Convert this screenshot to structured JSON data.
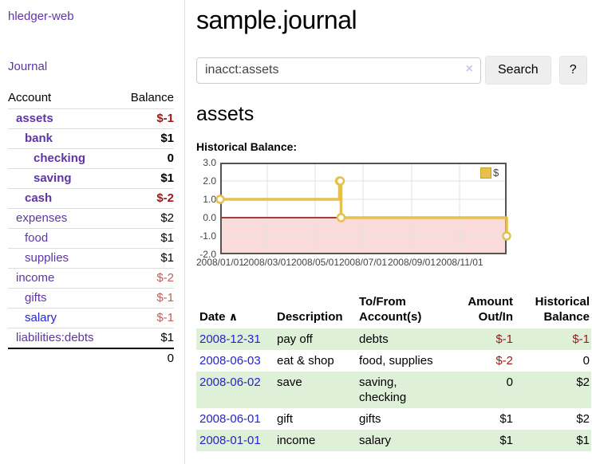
{
  "colors": {
    "purple": "#5f35a5",
    "blue": "#2424cc",
    "negative": "#9a1a1a",
    "negative_muted": "#bd605f",
    "row_green": "#dff0d8",
    "gold": "#e6c04c"
  },
  "sidebar": {
    "app_title": "hledger-web",
    "journal_link": "Journal",
    "accounts_table": {
      "account_header": "Account",
      "balance_header": "Balance",
      "rows": [
        {
          "name": "assets",
          "indent": 1,
          "bold": true,
          "link_color": "purple",
          "balance": "$-1",
          "balance_class": "neg"
        },
        {
          "name": "bank",
          "indent": 2,
          "bold": true,
          "link_color": "purple",
          "balance": "$1",
          "balance_class": ""
        },
        {
          "name": "checking",
          "indent": 3,
          "bold": true,
          "link_color": "purple",
          "balance": "0",
          "balance_class": ""
        },
        {
          "name": "saving",
          "indent": 3,
          "bold": true,
          "link_color": "purple",
          "balance": "$1",
          "balance_class": ""
        },
        {
          "name": "cash",
          "indent": 2,
          "bold": true,
          "link_color": "purple",
          "balance": "$-2",
          "balance_class": "neg"
        },
        {
          "name": "expenses",
          "indent": 1,
          "bold": false,
          "link_color": "purple",
          "balance": "$2",
          "balance_class": ""
        },
        {
          "name": "food",
          "indent": 2,
          "bold": false,
          "link_color": "purple",
          "balance": "$1",
          "balance_class": ""
        },
        {
          "name": "supplies",
          "indent": 2,
          "bold": false,
          "link_color": "purple",
          "balance": "$1",
          "balance_class": ""
        },
        {
          "name": "income",
          "indent": 1,
          "bold": false,
          "link_color": "purple",
          "balance": "$-2",
          "balance_class": "negmuted"
        },
        {
          "name": "gifts",
          "indent": 2,
          "bold": false,
          "link_color": "purple",
          "balance": "$-1",
          "balance_class": "negmuted"
        },
        {
          "name": "salary",
          "indent": 2,
          "bold": false,
          "link_color": "blue",
          "balance": "$-1",
          "balance_class": "negmuted"
        },
        {
          "name": "liabilities:debts",
          "indent": 1,
          "bold": false,
          "link_color": "purple",
          "balance": "$1",
          "balance_class": ""
        }
      ],
      "total": "0"
    }
  },
  "main": {
    "title": "sample.journal",
    "search": {
      "value": "inacct:assets",
      "clear_icon": "×",
      "search_button": "Search",
      "help_button": "?"
    },
    "account_heading": "assets",
    "register_table": {
      "headers": {
        "date": "Date",
        "sort_indicator": "∧",
        "description": "Description",
        "accounts_line1": "To/From",
        "accounts_line2": "Account(s)",
        "amount_line1": "Amount",
        "amount_line2": "Out/In",
        "balance_line1": "Historical",
        "balance_line2": "Balance"
      },
      "rows": [
        {
          "date": "2008-12-31",
          "description": "pay off",
          "accounts": "debts",
          "amount": "$-1",
          "amount_class": "neg",
          "balance": "$-1",
          "balance_class": "neg",
          "shaded": true
        },
        {
          "date": "2008-06-03",
          "description": "eat & shop",
          "accounts": "food, supplies",
          "amount": "$-2",
          "amount_class": "neg",
          "balance": "0",
          "balance_class": "",
          "shaded": false
        },
        {
          "date": "2008-06-02",
          "description": "save",
          "accounts": "saving, checking",
          "amount": "0",
          "amount_class": "",
          "balance": "$2",
          "balance_class": "",
          "shaded": true
        },
        {
          "date": "2008-06-01",
          "description": "gift",
          "accounts": "gifts",
          "amount": "$1",
          "amount_class": "",
          "balance": "$2",
          "balance_class": "",
          "shaded": false
        },
        {
          "date": "2008-01-01",
          "description": "income",
          "accounts": "salary",
          "amount": "$1",
          "amount_class": "",
          "balance": "$1",
          "balance_class": "",
          "shaded": true
        }
      ]
    }
  },
  "chart_data": {
    "type": "line",
    "title": "Historical Balance:",
    "style": "step-after",
    "x_range": [
      "2008-01-01",
      "2008-12-31"
    ],
    "ylim": [
      -2,
      3
    ],
    "y_ticks": [
      {
        "label": "3.0",
        "value": 3
      },
      {
        "label": "2.0",
        "value": 2
      },
      {
        "label": "1.0",
        "value": 1
      },
      {
        "label": "0.0",
        "value": 0
      },
      {
        "label": "-1.0",
        "value": -1
      },
      {
        "label": "-2.0",
        "value": -2
      }
    ],
    "x_ticks": [
      {
        "label": "2008/01/01",
        "date": "2008-01-01"
      },
      {
        "label": "2008/03/01",
        "date": "2008-03-01"
      },
      {
        "label": "2008/05/01",
        "date": "2008-05-01"
      },
      {
        "label": "2008/07/01",
        "date": "2008-07-01"
      },
      {
        "label": "2008/09/01",
        "date": "2008-09-01"
      },
      {
        "label": "2008/11/01",
        "date": "2008-11-01"
      }
    ],
    "series": [
      {
        "name": "$",
        "color": "#e6c04c",
        "points": [
          {
            "date": "2008-01-01",
            "value": 1
          },
          {
            "date": "2008-06-01",
            "value": 2
          },
          {
            "date": "2008-06-02",
            "value": 2
          },
          {
            "date": "2008-06-03",
            "value": 0
          },
          {
            "date": "2008-12-31",
            "value": -1
          }
        ]
      }
    ],
    "legend_position": "top-right",
    "grid": true,
    "chart_colors": {
      "grid": "#e2e2e2",
      "border": "#545454",
      "zero_line": "#8b0000",
      "below_zero_fill": "#fadbdb",
      "marker_fill": "#ffffff"
    }
  }
}
